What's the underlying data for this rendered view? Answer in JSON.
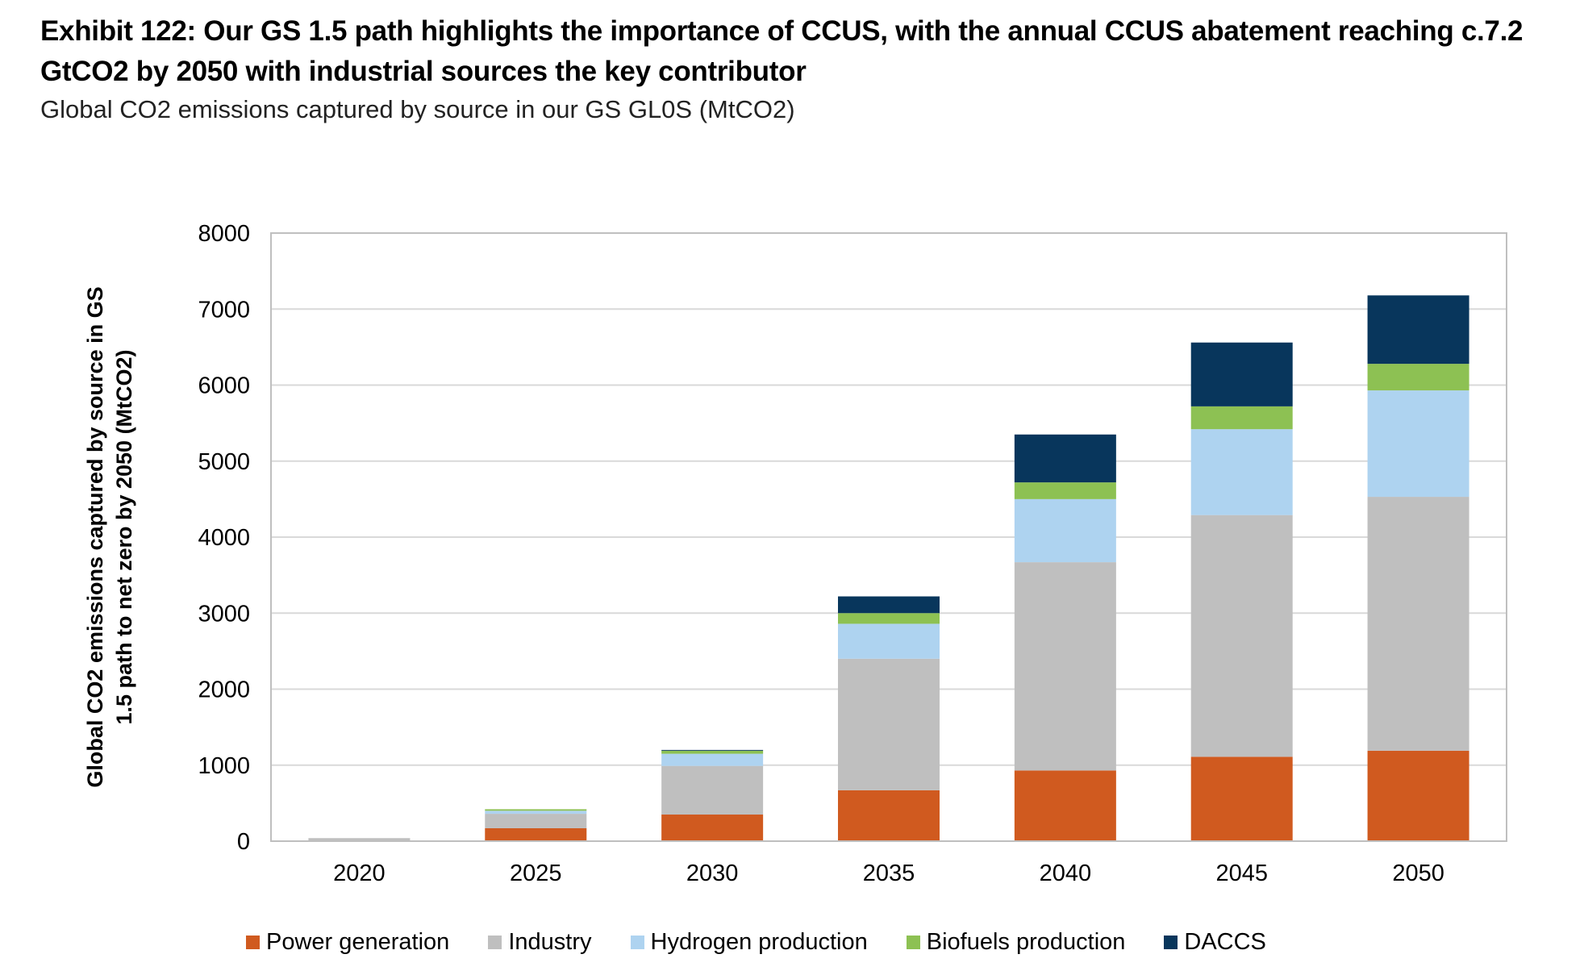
{
  "header": {
    "title": "Exhibit 122: Our GS 1.5 path highlights the importance of CCUS, with the annual CCUS abatement reaching c.7.2 GtCO2 by 2050 with industrial sources the key contributor",
    "subtitle": "Global CO2 emissions captured by source in our GS GL0S (MtCO2)"
  },
  "chart_data": {
    "type": "bar",
    "stacked": true,
    "categories": [
      "2020",
      "2025",
      "2030",
      "2035",
      "2040",
      "2045",
      "2050"
    ],
    "ylabel": "Global CO2 emissions captured by source in GS 1.5 path to net zero by 2050 (MtCO2)",
    "xlabel": "",
    "ylim": [
      0,
      8000
    ],
    "yticks": [
      0,
      1000,
      2000,
      3000,
      4000,
      5000,
      6000,
      7000,
      8000
    ],
    "grid": true,
    "legend_position": "bottom",
    "series": [
      {
        "name": "Power generation",
        "color": "#D05A1F",
        "values": [
          0,
          170,
          350,
          670,
          930,
          1110,
          1190
        ]
      },
      {
        "name": "Industry",
        "color": "#BFBFBF",
        "values": [
          40,
          190,
          640,
          1730,
          2740,
          3180,
          3340
        ]
      },
      {
        "name": "Hydrogen production",
        "color": "#AED3F0",
        "values": [
          0,
          40,
          160,
          460,
          830,
          1130,
          1400
        ]
      },
      {
        "name": "Biofuels production",
        "color": "#8DC153",
        "values": [
          0,
          20,
          40,
          140,
          220,
          300,
          350
        ]
      },
      {
        "name": "DACCS",
        "color": "#08365C",
        "values": [
          0,
          0,
          10,
          220,
          630,
          840,
          900
        ]
      }
    ]
  }
}
